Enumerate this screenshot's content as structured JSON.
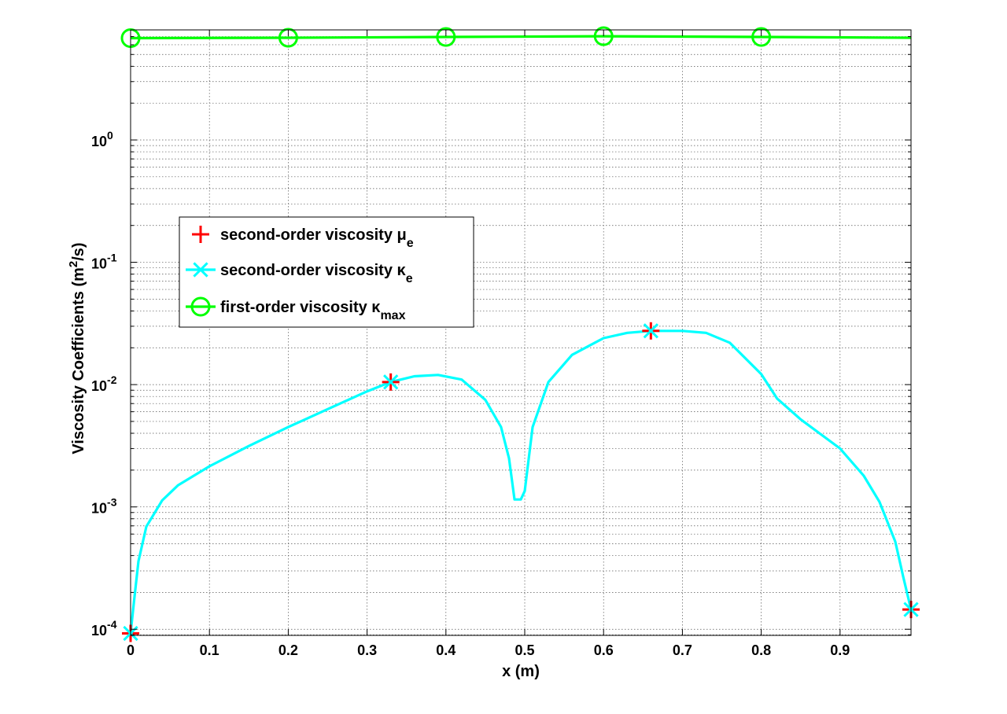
{
  "chart_data": {
    "type": "line",
    "title": "",
    "xlabel": "x (m)",
    "ylabel": {
      "main": "Viscosity Coefficients (m",
      "sup": "2",
      "tail": "/s)"
    },
    "yscale": "log",
    "xlim": [
      0,
      0.99
    ],
    "ylim_exponent": [
      -4.05,
      0.9
    ],
    "grid": true,
    "legend_placement": "center-left",
    "x_ticks": [
      {
        "value": 0,
        "label": "0"
      },
      {
        "value": 0.1,
        "label": "0.1"
      },
      {
        "value": 0.2,
        "label": "0.2"
      },
      {
        "value": 0.3,
        "label": "0.3"
      },
      {
        "value": 0.4,
        "label": "0.4"
      },
      {
        "value": 0.5,
        "label": "0.5"
      },
      {
        "value": 0.6,
        "label": "0.6"
      },
      {
        "value": 0.7,
        "label": "0.7"
      },
      {
        "value": 0.8,
        "label": "0.8"
      },
      {
        "value": 0.9,
        "label": "0.9"
      }
    ],
    "y_ticks": [
      {
        "exponent": -4,
        "base": "10",
        "sup": "-4"
      },
      {
        "exponent": -3,
        "base": "10",
        "sup": "-3"
      },
      {
        "exponent": -2,
        "base": "10",
        "sup": "-2"
      },
      {
        "exponent": -1,
        "base": "10",
        "sup": "-1"
      },
      {
        "exponent": 0,
        "base": "10",
        "sup": "0"
      }
    ],
    "series": [
      {
        "name": {
          "base": "second-order viscosity μ",
          "sub": "e"
        },
        "color": "#ff0000",
        "marker": "plus",
        "x": [
          0,
          0.33,
          0.66,
          0.99
        ],
        "y": [
          9.25e-05,
          0.0105,
          0.0275,
          0.000145
        ]
      },
      {
        "name": {
          "base": "second-order viscosity κ",
          "sub": "e"
        },
        "color": "#00ffff",
        "marker": "x",
        "x": [
          0,
          0.005,
          0.01,
          0.02,
          0.04,
          0.06,
          0.1,
          0.15,
          0.2,
          0.25,
          0.3,
          0.33,
          0.36,
          0.39,
          0.42,
          0.45,
          0.47,
          0.48,
          0.487,
          0.495,
          0.5,
          0.51,
          0.53,
          0.56,
          0.6,
          0.63,
          0.66,
          0.7,
          0.73,
          0.76,
          0.8,
          0.82,
          0.85,
          0.9,
          0.93,
          0.95,
          0.97,
          0.98,
          0.99
        ],
        "y": [
          9.25e-05,
          0.000185,
          0.00036,
          0.00069,
          0.00113,
          0.0015,
          0.00215,
          0.00315,
          0.0045,
          0.0063,
          0.0088,
          0.0105,
          0.0117,
          0.012,
          0.011,
          0.0075,
          0.0045,
          0.0025,
          0.00115,
          0.00115,
          0.00135,
          0.0045,
          0.0105,
          0.0175,
          0.024,
          0.0265,
          0.0275,
          0.0275,
          0.0265,
          0.022,
          0.0122,
          0.0077,
          0.0052,
          0.003,
          0.0018,
          0.0011,
          0.00052,
          0.00027,
          0.000145
        ],
        "markers_x": [
          0,
          0.33,
          0.66,
          0.99
        ],
        "markers_y": [
          9.25e-05,
          0.0105,
          0.0275,
          0.000145
        ]
      },
      {
        "name": {
          "base": "first-order viscosity κ",
          "sub": "max"
        },
        "color": "#00ff00",
        "marker": "circle",
        "x": [
          0,
          0.2,
          0.4,
          0.6,
          0.8,
          0.99
        ],
        "y": [
          6.8,
          6.85,
          6.95,
          7.05,
          6.95,
          6.85
        ],
        "markers_x": [
          0,
          0.2,
          0.4,
          0.6,
          0.8
        ],
        "markers_y": [
          6.8,
          6.85,
          6.95,
          7.05,
          6.95
        ]
      }
    ]
  }
}
